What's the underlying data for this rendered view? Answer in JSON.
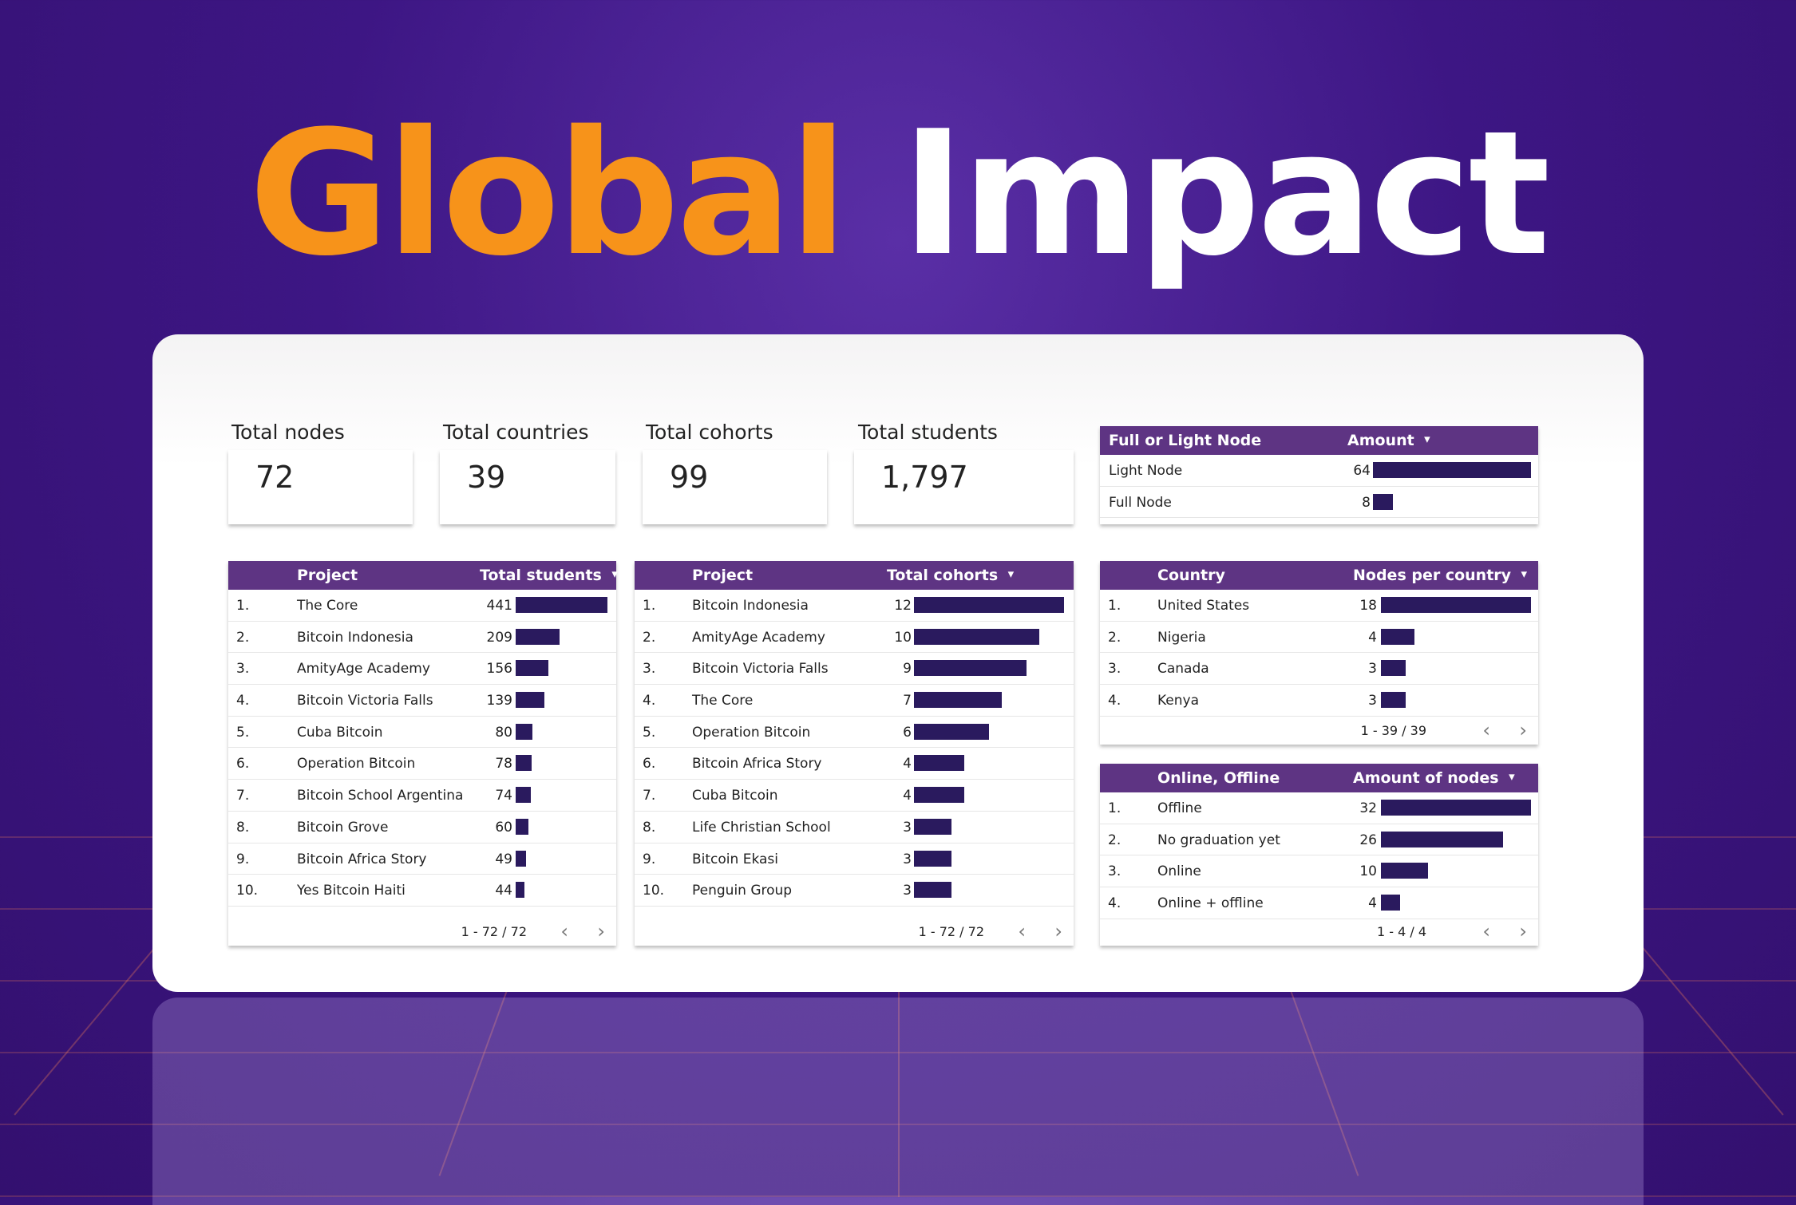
{
  "title": {
    "part1": "Global",
    "part2": "Impact"
  },
  "kpis": [
    {
      "label": "Total nodes",
      "value": "72"
    },
    {
      "label": "Total countries",
      "value": "39"
    },
    {
      "label": "Total cohorts",
      "value": "99"
    },
    {
      "label": "Total students",
      "value": "1,797"
    }
  ],
  "colors": {
    "header": "#5e3483",
    "bar": "#2a1a5e",
    "accent": "#f7931a"
  },
  "tables": {
    "node_type": {
      "col1": "Full or Light Node",
      "col2": "Amount",
      "sort_icon": "caret-down-icon",
      "ranked": false,
      "rows": [
        {
          "label": "Light Node",
          "value": 64
        },
        {
          "label": "Full Node",
          "value": 8
        }
      ]
    },
    "students": {
      "col1": "Project",
      "col2": "Total students",
      "sort_icon": "caret-down-icon",
      "ranked": true,
      "pagination": "1 - 72 / 72",
      "rows": [
        {
          "label": "The Core",
          "value": 441
        },
        {
          "label": "Bitcoin Indonesia",
          "value": 209
        },
        {
          "label": "AmityAge Academy",
          "value": 156
        },
        {
          "label": "Bitcoin Victoria Falls",
          "value": 139
        },
        {
          "label": "Cuba Bitcoin",
          "value": 80
        },
        {
          "label": "Operation Bitcoin",
          "value": 78
        },
        {
          "label": "Bitcoin School Argentina",
          "value": 74
        },
        {
          "label": "Bitcoin Grove",
          "value": 60
        },
        {
          "label": "Bitcoin Africa Story",
          "value": 49
        },
        {
          "label": "Yes Bitcoin Haiti",
          "value": 44
        }
      ]
    },
    "cohorts": {
      "col1": "Project",
      "col2": "Total cohorts",
      "sort_icon": "caret-down-icon",
      "ranked": true,
      "pagination": "1 - 72 / 72",
      "rows": [
        {
          "label": "Bitcoin Indonesia",
          "value": 12
        },
        {
          "label": "AmityAge Academy",
          "value": 10
        },
        {
          "label": "Bitcoin Victoria Falls",
          "value": 9
        },
        {
          "label": "The Core",
          "value": 7
        },
        {
          "label": "Operation Bitcoin",
          "value": 6
        },
        {
          "label": "Bitcoin Africa Story",
          "value": 4
        },
        {
          "label": "Cuba Bitcoin",
          "value": 4
        },
        {
          "label": "Life Christian School",
          "value": 3
        },
        {
          "label": "Bitcoin Ekasi",
          "value": 3
        },
        {
          "label": "Penguin Group",
          "value": 3
        }
      ]
    },
    "countries": {
      "col1": "Country",
      "col2": "Nodes per country",
      "sort_icon": "caret-down-icon",
      "ranked": true,
      "pagination": "1 - 39 / 39",
      "rows": [
        {
          "label": "United States",
          "value": 18
        },
        {
          "label": "Nigeria",
          "value": 4
        },
        {
          "label": "Canada",
          "value": 3
        },
        {
          "label": "Kenya",
          "value": 3
        }
      ]
    },
    "online": {
      "col1": "Online, Offline",
      "col2": "Amount of nodes",
      "sort_icon": "caret-down-icon",
      "ranked": true,
      "pagination": "1 - 4 / 4",
      "rows": [
        {
          "label": "Offline",
          "value": 32
        },
        {
          "label": "No graduation yet",
          "value": 26
        },
        {
          "label": "Online",
          "value": 10
        },
        {
          "label": "Online + offline",
          "value": 4
        }
      ]
    }
  }
}
